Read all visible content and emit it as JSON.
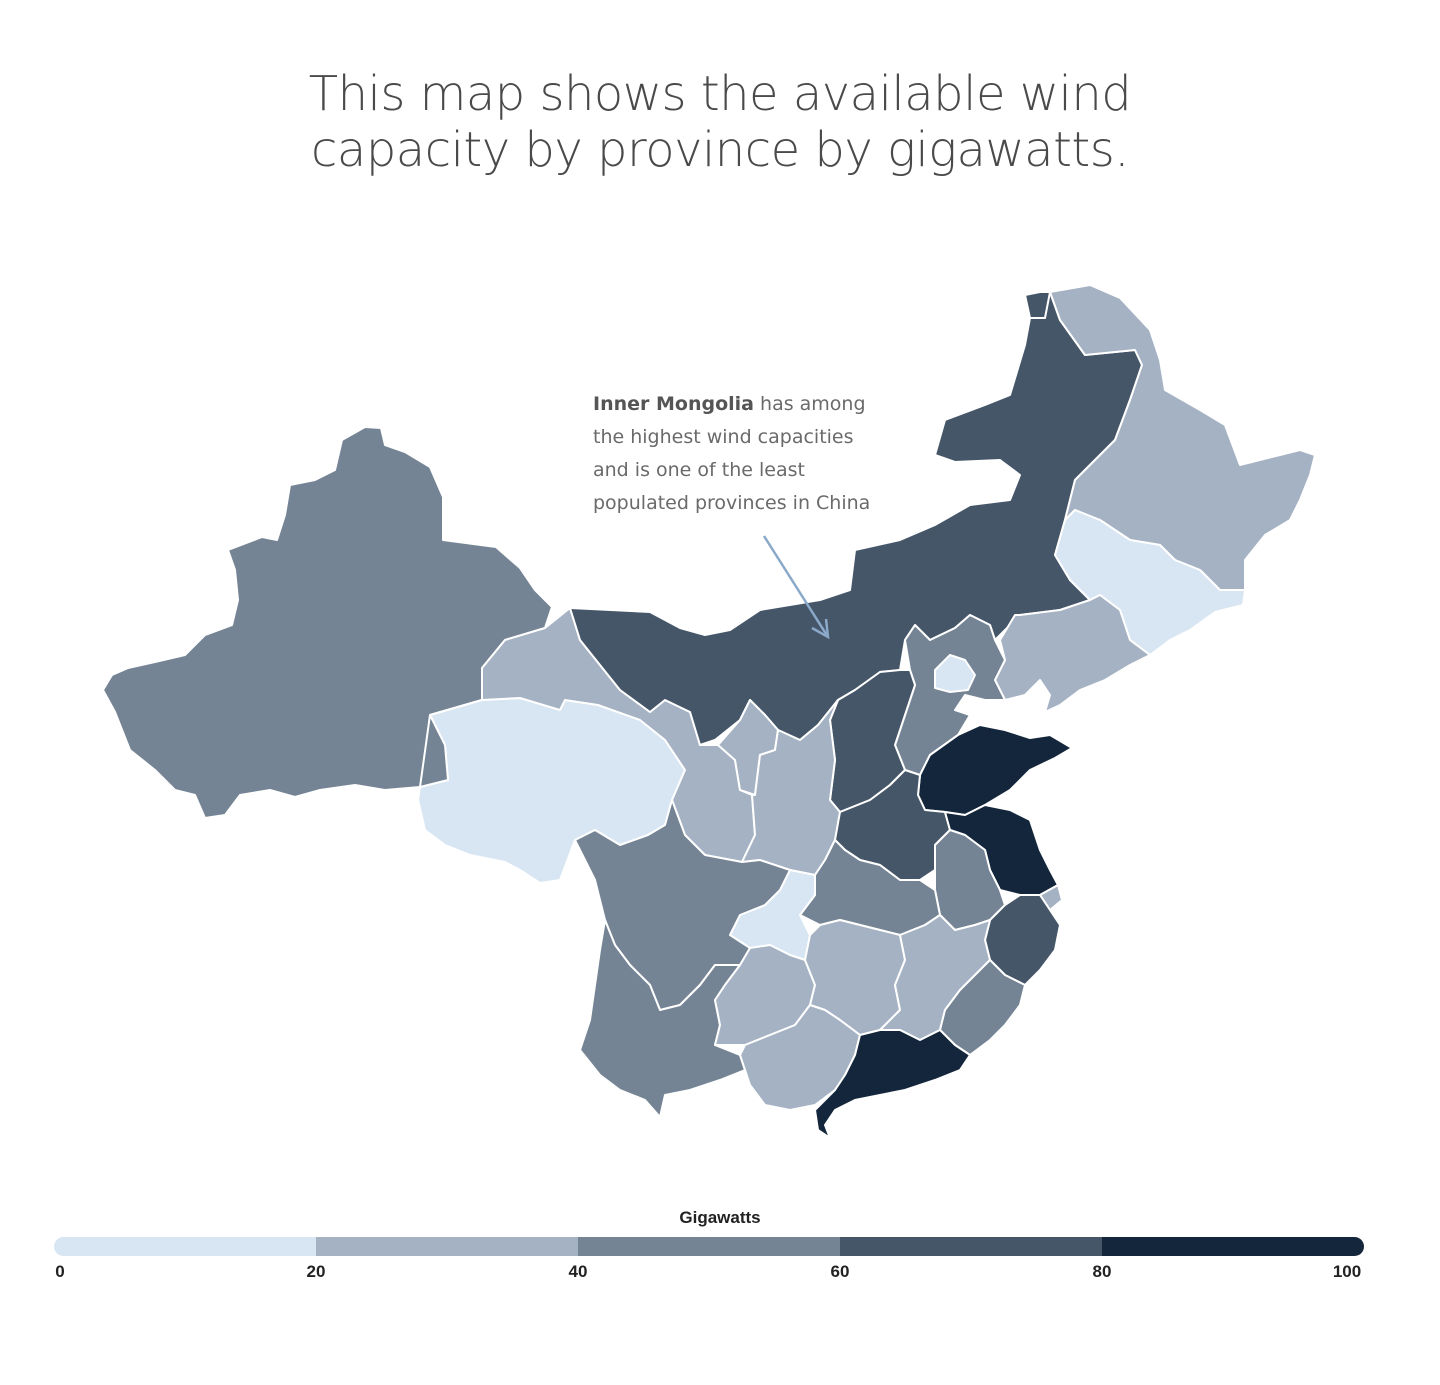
{
  "title": {
    "line1": "This map shows the available wind",
    "line2": "capacity by province by gigawatts."
  },
  "annotation": {
    "bold": "Inner Mongolia",
    "line1_rest": " has among",
    "line2": "the highest wind capacities",
    "line3": "and is one of the least",
    "line4": "populated provinces in China"
  },
  "legend": {
    "title": "Gigawatts",
    "ticks": [
      "0",
      "20",
      "40",
      "60",
      "80",
      "100"
    ],
    "colors": [
      "#d8e5f2",
      "#a5b2c3",
      "#758494",
      "#465669",
      "#13263b"
    ]
  },
  "regions": [
    {
      "name": "Xinjiang",
      "class": 2
    },
    {
      "name": "Tibet",
      "class": 2
    },
    {
      "name": "Qinghai",
      "class": 0
    },
    {
      "name": "Gansu",
      "class": 1
    },
    {
      "name": "Inner Mongolia",
      "class": 3
    },
    {
      "name": "Heilongjiang",
      "class": 1
    },
    {
      "name": "Heilongjiang-north",
      "class": 3
    },
    {
      "name": "Jilin",
      "class": 0
    },
    {
      "name": "Liaoning",
      "class": 1
    },
    {
      "name": "Hebei",
      "class": 2
    },
    {
      "name": "Beijing",
      "class": 0
    },
    {
      "name": "Shanxi",
      "class": 3
    },
    {
      "name": "Shaanxi",
      "class": 1
    },
    {
      "name": "Ningxia",
      "class": 1
    },
    {
      "name": "Shandong",
      "class": 4
    },
    {
      "name": "Henan",
      "class": 3
    },
    {
      "name": "Jiangsu",
      "class": 4
    },
    {
      "name": "Anhui",
      "class": 2
    },
    {
      "name": "Shanghai",
      "class": 1
    },
    {
      "name": "Zhejiang",
      "class": 3
    },
    {
      "name": "Hubei",
      "class": 2
    },
    {
      "name": "Sichuan",
      "class": 2
    },
    {
      "name": "Chongqing",
      "class": 0
    },
    {
      "name": "Hunan",
      "class": 1
    },
    {
      "name": "Jiangxi",
      "class": 1
    },
    {
      "name": "Fujian",
      "class": 2
    },
    {
      "name": "Guizhou",
      "class": 1
    },
    {
      "name": "Yunnan",
      "class": 2
    },
    {
      "name": "Guangxi",
      "class": 1
    },
    {
      "name": "Guangdong",
      "class": 4
    }
  ]
}
